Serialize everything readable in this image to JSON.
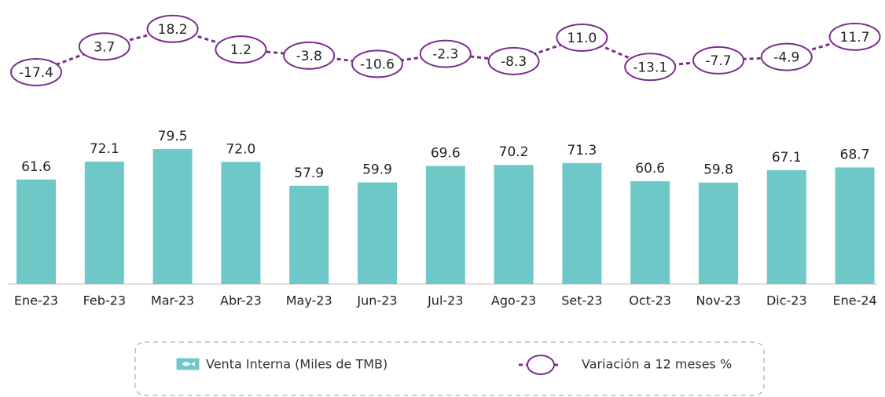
{
  "chart_data": {
    "type": "bar",
    "categories": [
      "Ene-23",
      "Feb-23",
      "Mar-23",
      "Abr-23",
      "May-23",
      "Jun-23",
      "Jul-23",
      "Ago-23",
      "Set-23",
      "Oct-23",
      "Nov-23",
      "Dic-23",
      "Ene-24"
    ],
    "series": [
      {
        "name": "Venta Interna (Miles de TMB)",
        "color": "#6ec8c8",
        "values": [
          61.6,
          72.1,
          79.5,
          72,
          57.9,
          59.9,
          69.6,
          70.2,
          71.3,
          60.6,
          59.8,
          67.1,
          68.7
        ],
        "value_labels": [
          "61.6",
          "72.1",
          "79.5",
          "72.0",
          "57.9",
          "59.9",
          "69.6",
          "70.2",
          "71.3",
          "60.6",
          "59.8",
          "67.1",
          "68.7"
        ]
      },
      {
        "name": "Variación a 12 meses %",
        "type": "line",
        "axis": "y2",
        "color": "#7b2d8e",
        "values": [
          -17.4,
          3.7,
          18.2,
          1.2,
          -3.8,
          -10.6,
          -2.3,
          -8.3,
          11,
          -13.1,
          -7.7,
          -4.9,
          11.7
        ],
        "value_labels": [
          "-17.4",
          "3.7",
          "18.2",
          "1.2",
          "-3.8",
          "-10.6",
          "-2.3",
          "-8.3",
          "11.0",
          "-13.1",
          "-7.7",
          "-4.9",
          "11.7"
        ]
      }
    ],
    "ylim": [
      0,
      80
    ],
    "y2lim": [
      -20,
      20
    ]
  }
}
